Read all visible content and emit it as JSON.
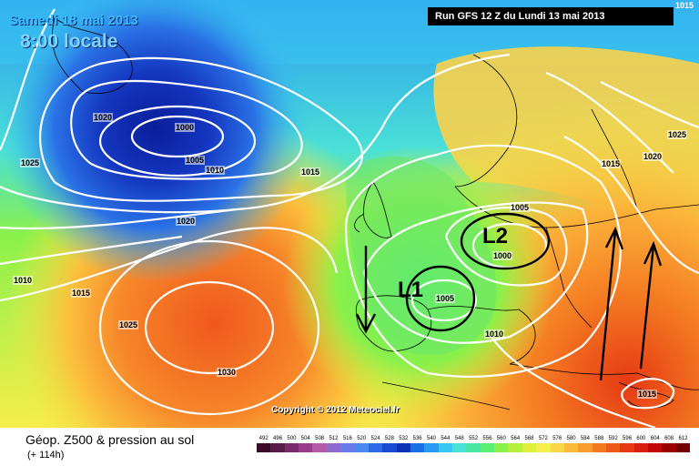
{
  "header": {
    "date": "Samedi 18 mai 2013",
    "time": "8:00 locale",
    "run": "Run GFS 12 Z du Lundi 13 mai 2013",
    "corner": "1015"
  },
  "footer": {
    "field_label": "Géop. Z500 & pression au sol",
    "lead_label": "(+ 114h)",
    "copyright": "Copyright © 2012 Meteociel.fr"
  },
  "scale": {
    "values": [
      "492",
      "496",
      "500",
      "504",
      "508",
      "512",
      "516",
      "520",
      "524",
      "528",
      "532",
      "536",
      "540",
      "544",
      "548",
      "552",
      "556",
      "560",
      "564",
      "568",
      "572",
      "576",
      "580",
      "584",
      "588",
      "592",
      "596",
      "600",
      "604",
      "608",
      "612"
    ],
    "colors": [
      "#3a0a2a",
      "#5a1a4a",
      "#7a2a6a",
      "#9a3a8a",
      "#b45aa8",
      "#8c6ad0",
      "#6a7ae6",
      "#4a8aee",
      "#2a6ae6",
      "#1a4ad2",
      "#0a32b4",
      "#1a6ee6",
      "#2a9af0",
      "#3ac6f2",
      "#4ae0d6",
      "#4ae6a6",
      "#5aee72",
      "#8af04a",
      "#b6f03a",
      "#dcf03a",
      "#f6ee4a",
      "#fcd64a",
      "#fcba3a",
      "#f89e2e",
      "#f47a22",
      "#ee5a1a",
      "#e63a14",
      "#d8200e",
      "#c00808",
      "#9a0000",
      "#740000"
    ]
  },
  "isobars": [
    {
      "label": "1020"
    },
    {
      "label": "1000"
    },
    {
      "label": "1005"
    },
    {
      "label": "1010"
    },
    {
      "label": "1025"
    },
    {
      "label": "1015"
    },
    {
      "label": "1020"
    },
    {
      "label": "1010"
    },
    {
      "label": "1015"
    },
    {
      "label": "1025"
    },
    {
      "label": "1030"
    },
    {
      "label": "1005"
    },
    {
      "label": "1000"
    },
    {
      "label": "1005"
    },
    {
      "label": "1010"
    },
    {
      "label": "1015"
    },
    {
      "label": "1020"
    },
    {
      "label": "1025"
    },
    {
      "label": "1015"
    }
  ],
  "lows": [
    {
      "label": "L",
      "number": "2"
    },
    {
      "label": "L",
      "number": "1"
    }
  ]
}
